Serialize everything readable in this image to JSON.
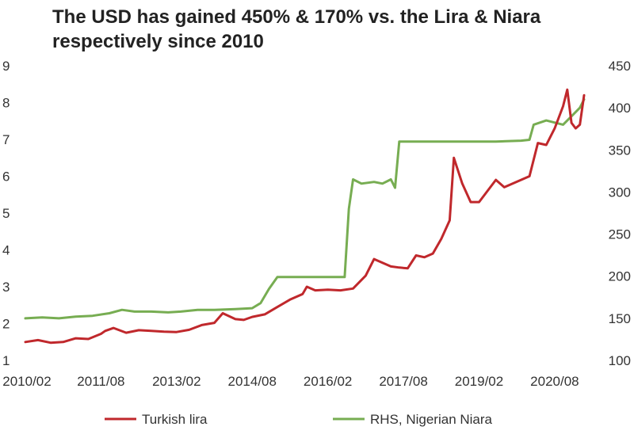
{
  "chart_data": {
    "type": "line",
    "title": "The USD has gained 450% & 170% vs. the Lira & Niara respectively since 2010",
    "x_tick_labels": [
      "2010/02",
      "2011/08",
      "2013/02",
      "2014/08",
      "2016/02",
      "2017/08",
      "2019/02",
      "2020/08"
    ],
    "x_range": [
      "2010-02",
      "2021-03"
    ],
    "y_left": {
      "ticks": [
        1,
        2,
        3,
        4,
        5,
        6,
        7,
        8,
        9
      ],
      "range": [
        1,
        9
      ]
    },
    "y_right": {
      "ticks": [
        100,
        150,
        200,
        250,
        300,
        350,
        400,
        450
      ],
      "range": [
        100,
        450
      ]
    },
    "grid": false,
    "legend_position": "bottom",
    "series": [
      {
        "name": "Turkish lira",
        "axis": "left",
        "color": "#c0282c",
        "points": [
          [
            "2010-02",
            1.5
          ],
          [
            "2010-05",
            1.55
          ],
          [
            "2010-08",
            1.48
          ],
          [
            "2010-11",
            1.5
          ],
          [
            "2011-02",
            1.6
          ],
          [
            "2011-05",
            1.58
          ],
          [
            "2011-08",
            1.72
          ],
          [
            "2011-09",
            1.8
          ],
          [
            "2011-11",
            1.88
          ],
          [
            "2012-02",
            1.75
          ],
          [
            "2012-05",
            1.82
          ],
          [
            "2012-08",
            1.8
          ],
          [
            "2012-11",
            1.78
          ],
          [
            "2013-02",
            1.77
          ],
          [
            "2013-05",
            1.83
          ],
          [
            "2013-08",
            1.96
          ],
          [
            "2013-11",
            2.02
          ],
          [
            "2014-01",
            2.28
          ],
          [
            "2014-04",
            2.12
          ],
          [
            "2014-06",
            2.1
          ],
          [
            "2014-08",
            2.18
          ],
          [
            "2014-11",
            2.25
          ],
          [
            "2015-02",
            2.45
          ],
          [
            "2015-05",
            2.65
          ],
          [
            "2015-08",
            2.8
          ],
          [
            "2015-09",
            3.0
          ],
          [
            "2015-11",
            2.9
          ],
          [
            "2016-02",
            2.92
          ],
          [
            "2016-05",
            2.9
          ],
          [
            "2016-08",
            2.95
          ],
          [
            "2016-11",
            3.3
          ],
          [
            "2017-01",
            3.75
          ],
          [
            "2017-03",
            3.65
          ],
          [
            "2017-05",
            3.55
          ],
          [
            "2017-07",
            3.52
          ],
          [
            "2017-09",
            3.5
          ],
          [
            "2017-11",
            3.85
          ],
          [
            "2018-01",
            3.8
          ],
          [
            "2018-03",
            3.9
          ],
          [
            "2018-05",
            4.3
          ],
          [
            "2018-07",
            4.8
          ],
          [
            "2018-08",
            6.5
          ],
          [
            "2018-10",
            5.8
          ],
          [
            "2018-12",
            5.3
          ],
          [
            "2019-02",
            5.3
          ],
          [
            "2019-04",
            5.6
          ],
          [
            "2019-06",
            5.9
          ],
          [
            "2019-08",
            5.7
          ],
          [
            "2019-10",
            5.8
          ],
          [
            "2019-12",
            5.9
          ],
          [
            "2020-02",
            6.0
          ],
          [
            "2020-04",
            6.9
          ],
          [
            "2020-06",
            6.85
          ],
          [
            "2020-08",
            7.3
          ],
          [
            "2020-10",
            7.9
          ],
          [
            "2020-11",
            8.35
          ],
          [
            "2020-12",
            7.45
          ],
          [
            "2021-01",
            7.3
          ],
          [
            "2021-02",
            7.4
          ],
          [
            "2021-03",
            8.2
          ]
        ]
      },
      {
        "name": "RHS, Nigerian Niara",
        "axis": "right",
        "color": "#77ad52",
        "points": [
          [
            "2010-02",
            150
          ],
          [
            "2010-06",
            151
          ],
          [
            "2010-10",
            150
          ],
          [
            "2011-02",
            152
          ],
          [
            "2011-06",
            153
          ],
          [
            "2011-10",
            156
          ],
          [
            "2012-01",
            160
          ],
          [
            "2012-04",
            158
          ],
          [
            "2012-08",
            158
          ],
          [
            "2012-12",
            157
          ],
          [
            "2013-03",
            158
          ],
          [
            "2013-07",
            160
          ],
          [
            "2013-11",
            160
          ],
          [
            "2014-04",
            161
          ],
          [
            "2014-08",
            162
          ],
          [
            "2014-10",
            168
          ],
          [
            "2014-12",
            185
          ],
          [
            "2015-02",
            199
          ],
          [
            "2016-06",
            199
          ],
          [
            "2016-07",
            280
          ],
          [
            "2016-08",
            315
          ],
          [
            "2016-10",
            310
          ],
          [
            "2017-01",
            312
          ],
          [
            "2017-03",
            310
          ],
          [
            "2017-05",
            315
          ],
          [
            "2017-06",
            305
          ],
          [
            "2017-07",
            360
          ],
          [
            "2018-06",
            360
          ],
          [
            "2019-02",
            360
          ],
          [
            "2019-06",
            360
          ],
          [
            "2019-12",
            361
          ],
          [
            "2020-02",
            362
          ],
          [
            "2020-03",
            380
          ],
          [
            "2020-06",
            385
          ],
          [
            "2020-10",
            380
          ],
          [
            "2020-12",
            390
          ],
          [
            "2021-02",
            400
          ],
          [
            "2021-03",
            410
          ]
        ]
      }
    ]
  }
}
